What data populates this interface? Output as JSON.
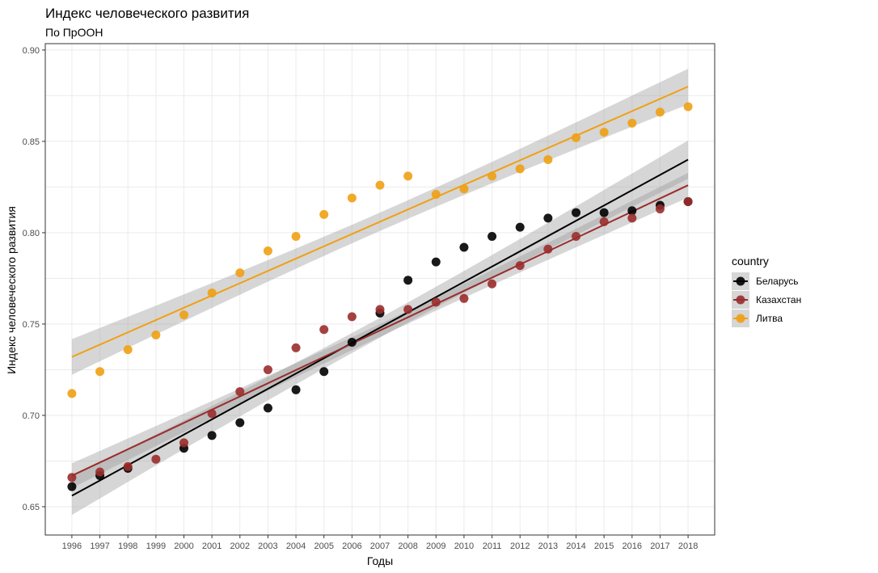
{
  "chart_data": {
    "type": "scatter",
    "title": "Индекс человеческого развития",
    "subtitle": "По ПрООН",
    "xlabel": "Годы",
    "ylabel": "Индекс человеческого развития",
    "x": [
      1996,
      1997,
      1998,
      1999,
      2000,
      2001,
      2002,
      2003,
      2004,
      2005,
      2006,
      2007,
      2008,
      2009,
      2010,
      2011,
      2012,
      2013,
      2014,
      2015,
      2016,
      2017,
      2018
    ],
    "xlim": [
      1995.05,
      2018.95
    ],
    "ylim": [
      0.6345,
      0.9035
    ],
    "yticks": [
      0.65,
      0.7,
      0.75,
      0.8,
      0.85,
      0.9
    ],
    "ytick_labels": [
      "0.65",
      "0.70",
      "0.75",
      "0.80",
      "0.85",
      "0.90"
    ],
    "grid": true,
    "legend_title": "country",
    "legend_position": "right",
    "series": [
      {
        "name": "Беларусь",
        "color": "#000000",
        "values": [
          0.661,
          0.667,
          0.671,
          null,
          0.682,
          0.689,
          0.696,
          0.704,
          0.714,
          0.724,
          0.74,
          0.756,
          0.774,
          0.784,
          0.792,
          0.798,
          0.803,
          0.808,
          0.811,
          0.811,
          0.812,
          0.815,
          0.817
        ],
        "trend": [
          0.656,
          0.84
        ]
      },
      {
        "name": "Казахстан",
        "color": "#9b2c2c",
        "values": [
          0.666,
          0.669,
          0.672,
          0.676,
          0.685,
          0.701,
          0.713,
          0.725,
          0.737,
          0.747,
          0.754,
          0.758,
          0.758,
          0.762,
          0.764,
          0.772,
          0.782,
          0.791,
          0.798,
          0.806,
          0.808,
          0.813,
          0.817
        ],
        "trend": [
          0.667,
          0.826
        ]
      },
      {
        "name": "Литва",
        "color": "#f0a013",
        "values": [
          0.712,
          0.724,
          0.736,
          0.744,
          0.755,
          0.767,
          0.778,
          0.79,
          0.798,
          0.81,
          0.819,
          0.826,
          0.831,
          0.821,
          0.824,
          0.831,
          0.835,
          0.84,
          0.852,
          0.855,
          0.86,
          0.866,
          0.869
        ],
        "trend": [
          0.732,
          0.88
        ]
      }
    ]
  },
  "colors": {
    "band": "#999999",
    "grid": "#ebebeb",
    "panel_border": "#333333"
  }
}
